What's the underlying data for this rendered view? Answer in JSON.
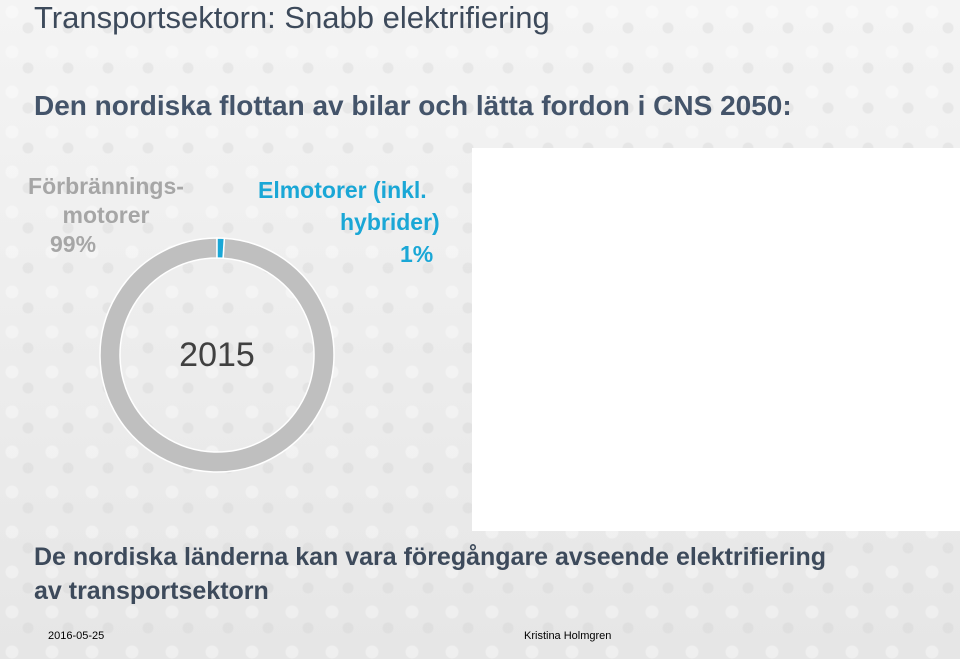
{
  "slide": {
    "title": "Transportsektorn: Snabb elektrifiering",
    "subtitle": "Den nordiska flottan av bilar och lätta fordon i CNS 2050:",
    "bottom_text_line1": "De nordiska länderna kan vara föregångare avseende elektrifiering",
    "bottom_text_line2": "av transportsektorn",
    "footer_date": "2016-05-25",
    "footer_author": "Kristina Holmgren"
  },
  "chart_data": {
    "type": "pie",
    "variant": "donut",
    "center_label": "2015",
    "slices": [
      {
        "label_line1": "Förbrännings-",
        "label_line2": "motorer",
        "value_label": "99%",
        "value": 99,
        "color": "#bfbfbf"
      },
      {
        "label_line1": "Elmotorer (inkl.",
        "label_line2": "hybrider)",
        "value_label": "1%",
        "value": 1,
        "color": "#1aa7d6"
      }
    ]
  }
}
